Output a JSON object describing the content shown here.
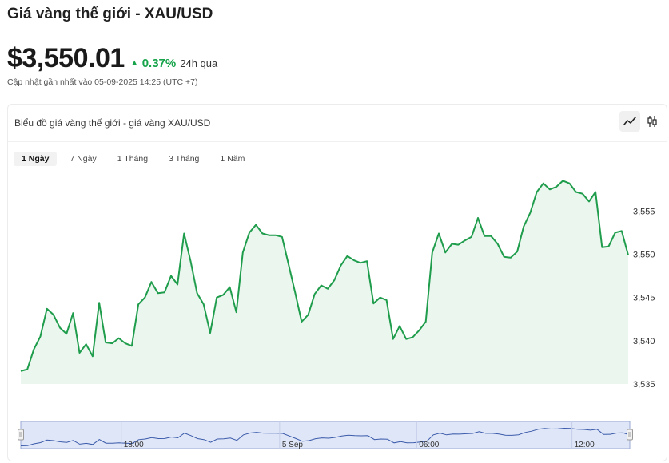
{
  "header": {
    "title": "Giá vàng thế giới - XAU/USD",
    "price": "$3,550.01",
    "change": "0.37%",
    "change_period": "24h qua",
    "updated": "Cập nhật gần nhất vào 05-09-2025 14:25 (UTC +7)"
  },
  "card": {
    "title": "Biểu đồ giá vàng thế giới - giá vàng XAU/USD"
  },
  "chart_toggle": [
    "line-chart-icon",
    "candlestick-icon"
  ],
  "range_tabs": [
    {
      "label": "1 Ngày",
      "active": true
    },
    {
      "label": "7 Ngày",
      "active": false
    },
    {
      "label": "1 Tháng",
      "active": false
    },
    {
      "label": "3 Tháng",
      "active": false
    },
    {
      "label": "1 Năm",
      "active": false
    }
  ],
  "colors": {
    "line": "#1f9d4c",
    "area": "#eaf6ee",
    "up": "#16a34a",
    "navigator_fill": "#dfe6f7",
    "navigator_border": "#9aa9d6",
    "navigator_line": "#3b5bab"
  },
  "chart_data": {
    "type": "area",
    "ylim": [
      3535,
      3559
    ],
    "yticks": [
      3535,
      3540,
      3545,
      3550,
      3555
    ],
    "ytick_labels": [
      "3,535",
      "3,540",
      "3,545",
      "3,550",
      "3,555"
    ],
    "navigator_labels": [
      "18:00",
      "5 Sep",
      "06:00",
      "12:00"
    ],
    "series": [
      {
        "values": [
          3536.5,
          3536.7,
          3539,
          3540.5,
          3543.7,
          3543,
          3541.5,
          3540.8,
          3543.2,
          3538.6,
          3539.6,
          3538.2,
          3544.4,
          3539.8,
          3539.7,
          3540.3,
          3539.7,
          3539.4,
          3544.2,
          3545,
          3546.8,
          3545.5,
          3545.6,
          3547.5,
          3546.5,
          3552.4,
          3549.2,
          3545.5,
          3544.2,
          3540.9,
          3545,
          3545.3,
          3546.2,
          3543.3,
          3550.2,
          3552.5,
          3553.4,
          3552.4,
          3552.2,
          3552.2,
          3552,
          3548.8,
          3545.6,
          3542.2,
          3543,
          3545.4,
          3546.4,
          3546,
          3547,
          3548.7,
          3549.8,
          3549.3,
          3549,
          3549.2,
          3544.3,
          3545,
          3544.7,
          3540.2,
          3541.7,
          3540.2,
          3540.4,
          3541.2,
          3542.2,
          3550.2,
          3552.4,
          3550.2,
          3551.2,
          3551.1,
          3551.6,
          3552,
          3554.2,
          3552.1,
          3552.1,
          3551.2,
          3549.7,
          3549.6,
          3550.3,
          3553.2,
          3554.8,
          3557.2,
          3558.2,
          3557.5,
          3557.8,
          3558.5,
          3558.2,
          3557.2,
          3557,
          3556.1,
          3557.2,
          3550.8,
          3550.9,
          3552.5,
          3552.7,
          3549.9
        ]
      }
    ]
  }
}
